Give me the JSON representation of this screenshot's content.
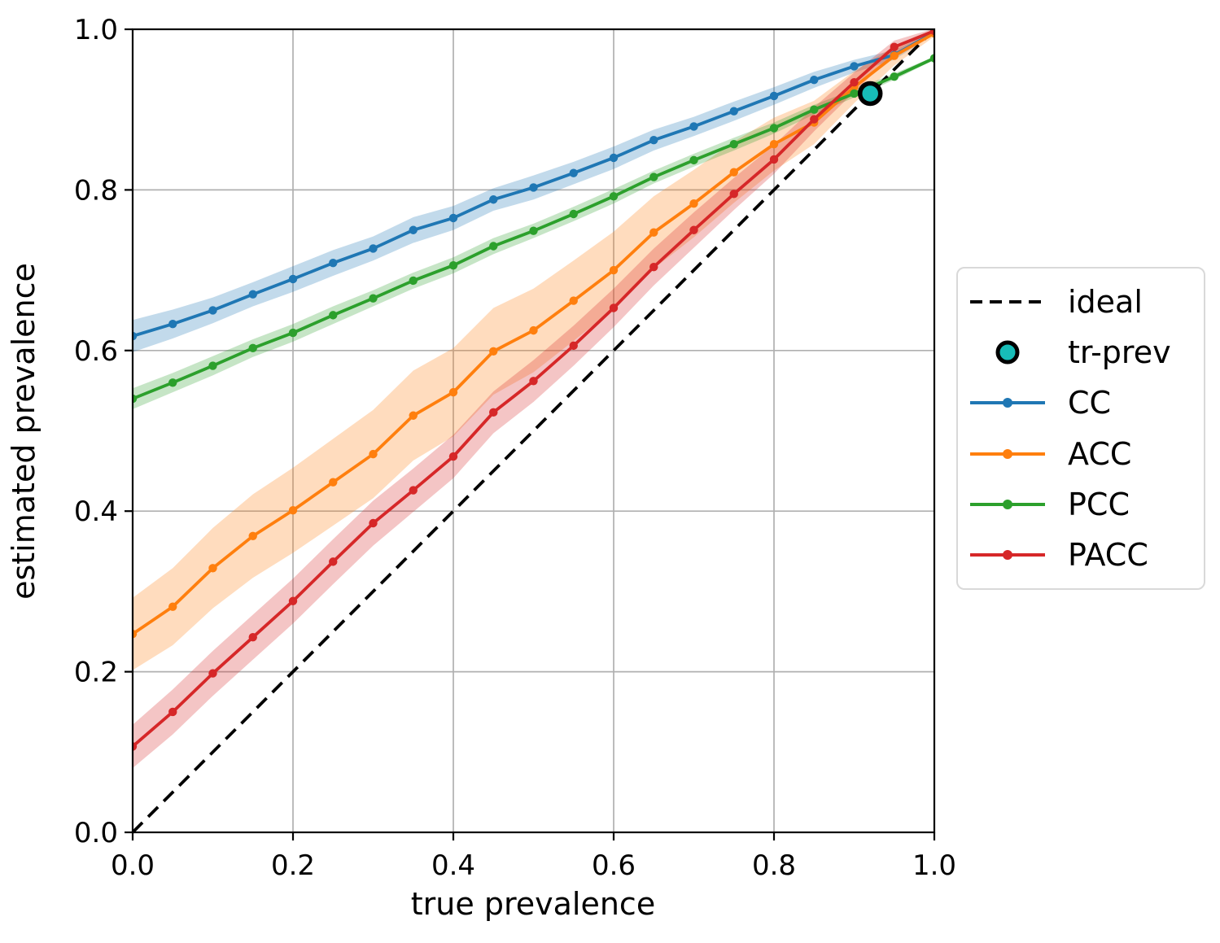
{
  "chart_data": {
    "type": "line",
    "title": "",
    "xlabel": "true prevalence",
    "ylabel": "estimated prevalence",
    "xlim": [
      0.0,
      1.0
    ],
    "ylim": [
      0.0,
      1.0
    ],
    "grid": true,
    "legend_position": "outside-right",
    "x_tick_values": [
      0.0,
      0.2,
      0.4,
      0.6,
      0.8,
      1.0
    ],
    "x_tick_labels": [
      "0.0",
      "0.2",
      "0.4",
      "0.6",
      "0.8",
      "1.0"
    ],
    "y_tick_values": [
      0.0,
      0.2,
      0.4,
      0.6,
      0.8,
      1.0
    ],
    "y_tick_labels": [
      "0.0",
      "0.2",
      "0.4",
      "0.6",
      "0.8",
      "1.0"
    ],
    "x": [
      0.0,
      0.05,
      0.1,
      0.15,
      0.2,
      0.25,
      0.3,
      0.35,
      0.4,
      0.45,
      0.5,
      0.55,
      0.6,
      0.65,
      0.7,
      0.75,
      0.8,
      0.85,
      0.9,
      0.95,
      1.0
    ],
    "series": [
      {
        "name": "CC",
        "color": "#1f77b4",
        "values": [
          0.618,
          0.633,
          0.65,
          0.67,
          0.689,
          0.709,
          0.727,
          0.75,
          0.765,
          0.788,
          0.803,
          0.821,
          0.84,
          0.862,
          0.879,
          0.898,
          0.917,
          0.937,
          0.954,
          0.968,
          0.996
        ],
        "band_halfwidth": [
          0.02,
          0.018,
          0.016,
          0.015,
          0.016,
          0.016,
          0.015,
          0.016,
          0.015,
          0.014,
          0.015,
          0.014,
          0.014,
          0.013,
          0.012,
          0.012,
          0.011,
          0.01,
          0.008,
          0.006,
          0.002
        ]
      },
      {
        "name": "ACC",
        "color": "#ff7f0e",
        "values": [
          0.247,
          0.281,
          0.329,
          0.369,
          0.401,
          0.436,
          0.471,
          0.519,
          0.548,
          0.599,
          0.625,
          0.662,
          0.7,
          0.747,
          0.783,
          0.822,
          0.857,
          0.884,
          0.928,
          0.967,
          0.995
        ],
        "band_halfwidth": [
          0.045,
          0.048,
          0.05,
          0.052,
          0.053,
          0.054,
          0.055,
          0.056,
          0.055,
          0.054,
          0.052,
          0.05,
          0.048,
          0.045,
          0.042,
          0.038,
          0.033,
          0.027,
          0.02,
          0.012,
          0.004
        ]
      },
      {
        "name": "PCC",
        "color": "#2ca02c",
        "values": [
          0.54,
          0.56,
          0.581,
          0.603,
          0.622,
          0.644,
          0.665,
          0.687,
          0.706,
          0.73,
          0.749,
          0.77,
          0.792,
          0.816,
          0.837,
          0.857,
          0.877,
          0.9,
          0.92,
          0.941,
          0.964
        ],
        "band_halfwidth": [
          0.013,
          0.012,
          0.012,
          0.011,
          0.011,
          0.011,
          0.01,
          0.01,
          0.01,
          0.01,
          0.009,
          0.009,
          0.009,
          0.008,
          0.008,
          0.008,
          0.007,
          0.006,
          0.005,
          0.004,
          0.002
        ]
      },
      {
        "name": "PACC",
        "color": "#d62728",
        "values": [
          0.107,
          0.15,
          0.198,
          0.243,
          0.288,
          0.337,
          0.385,
          0.426,
          0.468,
          0.523,
          0.562,
          0.606,
          0.653,
          0.704,
          0.75,
          0.795,
          0.838,
          0.888,
          0.934,
          0.978,
          0.998
        ],
        "band_halfwidth": [
          0.027,
          0.028,
          0.028,
          0.028,
          0.028,
          0.028,
          0.028,
          0.027,
          0.027,
          0.026,
          0.026,
          0.025,
          0.024,
          0.023,
          0.022,
          0.02,
          0.018,
          0.015,
          0.012,
          0.008,
          0.003
        ]
      }
    ],
    "ideal_line": {
      "label": "ideal",
      "style": "dashed",
      "color": "#000000",
      "from": [
        0.0,
        0.0
      ],
      "to": [
        1.0,
        1.0
      ]
    },
    "tr_prev_marker": {
      "label": "tr-prev",
      "x": 0.92,
      "y": 0.92,
      "fill": "#17bdb8",
      "edge": "#000000"
    },
    "legend_labels": [
      "ideal",
      "tr-prev",
      "CC",
      "ACC",
      "PCC",
      "PACC"
    ],
    "band_opacity": 0.27,
    "grid_color": "#b0b0b0",
    "spine_color": "#000000"
  }
}
